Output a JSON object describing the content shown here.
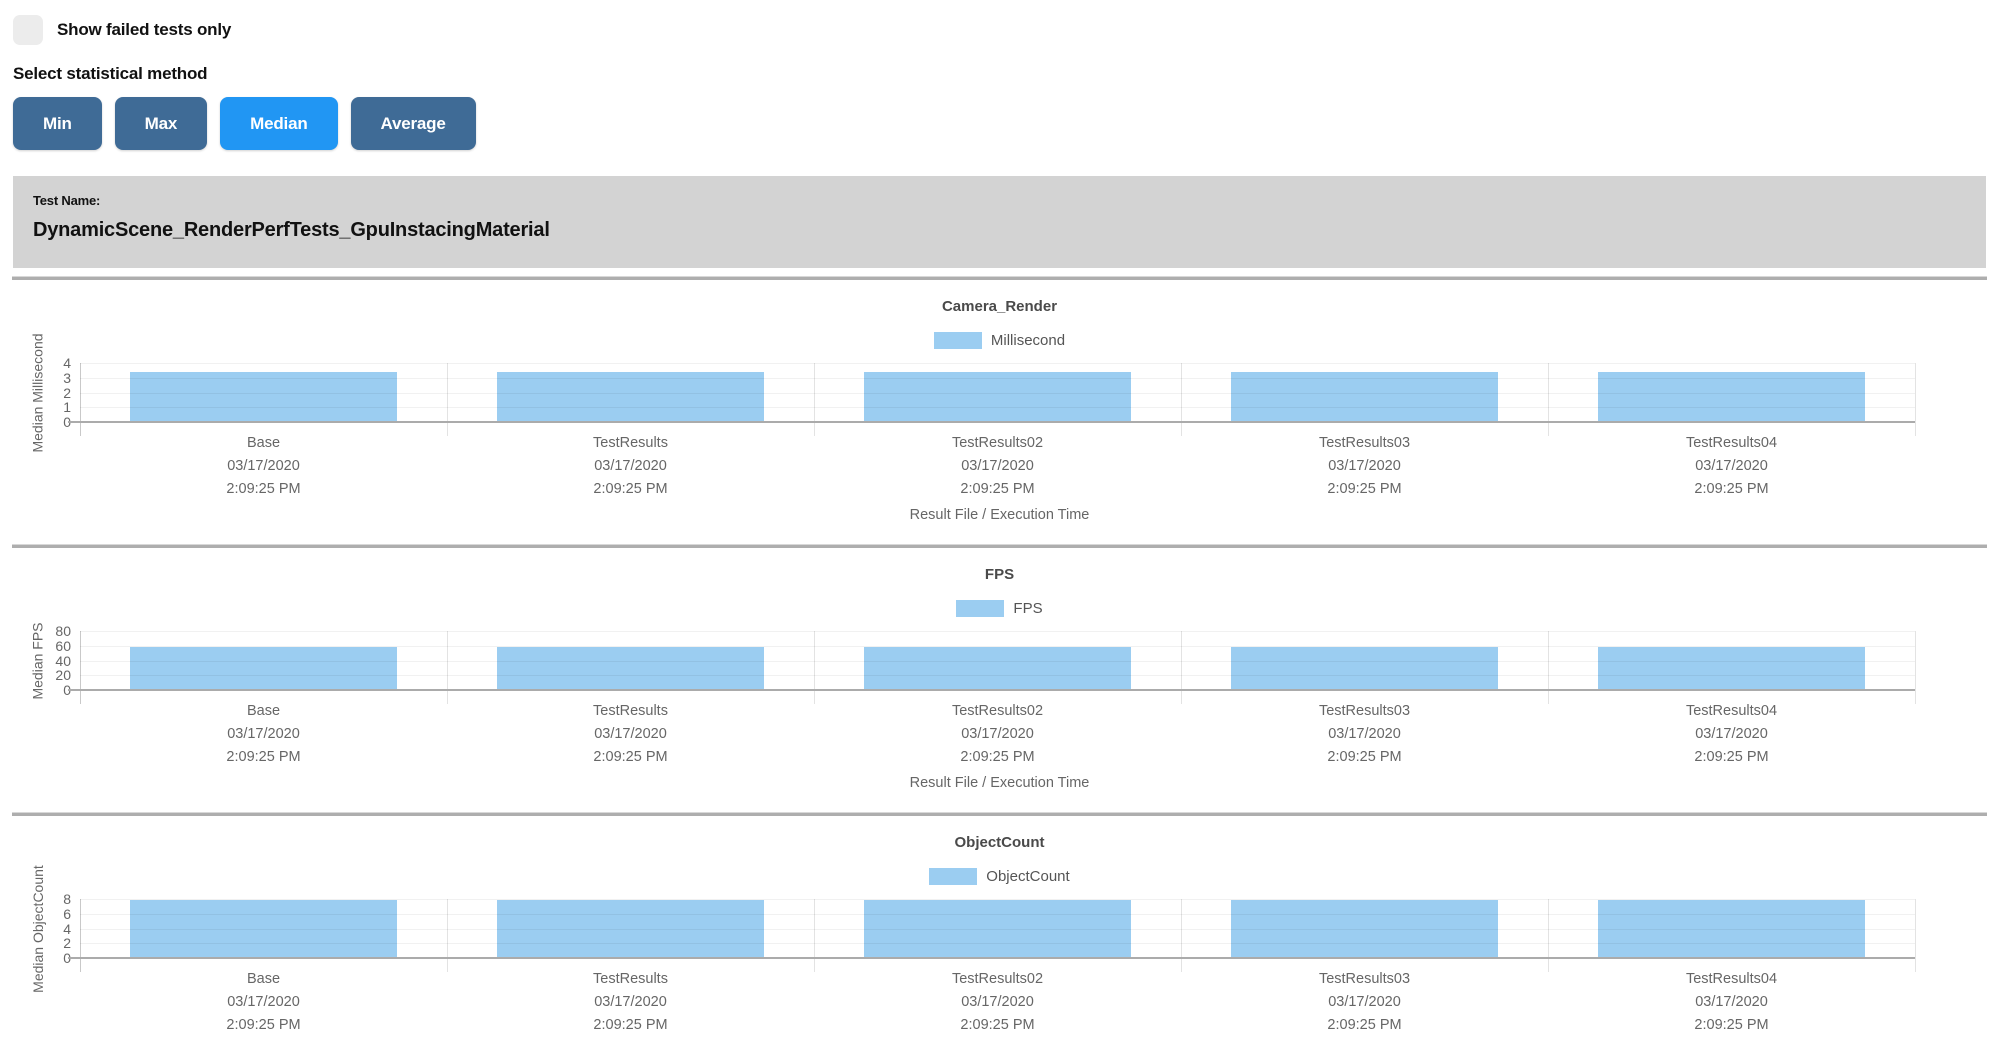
{
  "filters": {
    "show_failed_label": "Show failed tests only",
    "show_failed_checked": false,
    "stat_method_label": "Select statistical method",
    "stat_buttons": [
      {
        "label": "Min",
        "active": false
      },
      {
        "label": "Max",
        "active": false
      },
      {
        "label": "Median",
        "active": true
      },
      {
        "label": "Average",
        "active": false
      }
    ]
  },
  "test_header": {
    "label": "Test Name:",
    "name": "DynamicScene_RenderPerfTests_GpuInstacingMaterial"
  },
  "colors": {
    "button_active": "#2196f3",
    "button_inactive": "#3f6b96",
    "bar_fill": "#9bcdf1",
    "panel_bg": "#d3d3d3"
  },
  "chart_data": [
    {
      "type": "bar",
      "title": "Camera_Render",
      "legend": "Millisecond",
      "ylabel": "Median Millisecond",
      "xlabel": "Result File / Execution Time",
      "ylim": [
        0,
        4
      ],
      "yticks": [
        0,
        1,
        2,
        3,
        4
      ],
      "categories": [
        "Base",
        "TestResults",
        "TestResults02",
        "TestResults03",
        "TestResults04"
      ],
      "category_dates": [
        "03/17/2020",
        "03/17/2020",
        "03/17/2020",
        "03/17/2020",
        "03/17/2020"
      ],
      "category_times": [
        "2:09:25 PM",
        "2:09:25 PM",
        "2:09:25 PM",
        "2:09:25 PM",
        "2:09:25 PM"
      ],
      "values": [
        3.4,
        3.4,
        3.4,
        3.4,
        3.4
      ]
    },
    {
      "type": "bar",
      "title": "FPS",
      "legend": "FPS",
      "ylabel": "Median FPS",
      "xlabel": "Result File / Execution Time",
      "ylim": [
        0,
        80
      ],
      "yticks": [
        0,
        20,
        40,
        60,
        80
      ],
      "categories": [
        "Base",
        "TestResults",
        "TestResults02",
        "TestResults03",
        "TestResults04"
      ],
      "category_dates": [
        "03/17/2020",
        "03/17/2020",
        "03/17/2020",
        "03/17/2020",
        "03/17/2020"
      ],
      "category_times": [
        "2:09:25 PM",
        "2:09:25 PM",
        "2:09:25 PM",
        "2:09:25 PM",
        "2:09:25 PM"
      ],
      "values": [
        59,
        59,
        59,
        59,
        59
      ]
    },
    {
      "type": "bar",
      "title": "ObjectCount",
      "legend": "ObjectCount",
      "ylabel": "Median ObjectCount",
      "xlabel": "Result File / Execution Time",
      "ylim": [
        0,
        8
      ],
      "yticks": [
        0,
        2,
        4,
        6,
        8
      ],
      "categories": [
        "Base",
        "TestResults",
        "TestResults02",
        "TestResults03",
        "TestResults04"
      ],
      "category_dates": [
        "03/17/2020",
        "03/17/2020",
        "03/17/2020",
        "03/17/2020",
        "03/17/2020"
      ],
      "category_times": [
        "2:09:25 PM",
        "2:09:25 PM",
        "2:09:25 PM",
        "2:09:25 PM",
        "2:09:25 PM"
      ],
      "values": [
        7.8,
        7.8,
        7.8,
        7.8,
        7.8
      ]
    }
  ]
}
